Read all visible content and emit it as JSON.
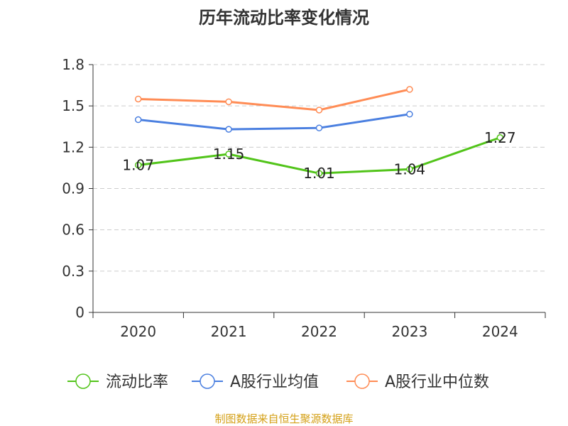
{
  "chart_data": {
    "type": "line",
    "title": "历年流动比率变化情况",
    "categories": [
      "2020",
      "2021",
      "2022",
      "2023",
      "2024"
    ],
    "ylim": [
      0,
      1.8
    ],
    "yticks": [
      "0",
      "0.3",
      "0.6",
      "0.9",
      "1.2",
      "1.5",
      "1.8"
    ],
    "ytick_values": [
      0,
      0.3,
      0.6,
      0.9,
      1.2,
      1.5,
      1.8
    ],
    "grid": true,
    "legend_position": "bottom",
    "series": [
      {
        "name": "流动比率",
        "color": "#52c41a",
        "values": [
          1.07,
          1.15,
          1.01,
          1.04,
          1.27
        ],
        "labels": [
          "1.07",
          "1.15",
          "1.01",
          "1.04",
          "1.27"
        ]
      },
      {
        "name": "A股行业均值",
        "color": "#4a7fe0",
        "values": [
          1.4,
          1.33,
          1.34,
          1.44,
          null
        ]
      },
      {
        "name": "A股行业中位数",
        "color": "#ff8c55",
        "values": [
          1.55,
          1.53,
          1.47,
          1.62,
          null
        ]
      }
    ],
    "source": "制图数据来自恒生聚源数据库"
  }
}
